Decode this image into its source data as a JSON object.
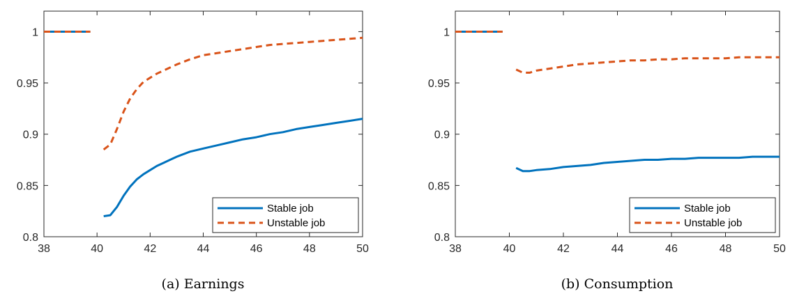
{
  "colors": {
    "stable": "#0072BD",
    "unstable": "#D95319"
  },
  "chart_data": [
    {
      "type": "line",
      "caption": "(a) Earnings",
      "title": "",
      "xlabel": "",
      "ylabel": "",
      "xlim": [
        38,
        50
      ],
      "ylim": [
        0.8,
        1.02
      ],
      "xticks": [
        38,
        40,
        42,
        44,
        46,
        48,
        50
      ],
      "yticks": [
        0.8,
        0.85,
        0.9,
        0.95,
        1
      ],
      "xtick_labels": [
        "38",
        "40",
        "42",
        "44",
        "46",
        "48",
        "50"
      ],
      "ytick_labels": [
        "0.8",
        "0.85",
        "0.9",
        "0.95",
        "1"
      ],
      "legend": {
        "placement": "bottom-right",
        "entries": [
          "Stable job",
          "Unstable job"
        ]
      },
      "series": [
        {
          "name": "Stable job",
          "segments": [
            {
              "x": [
                38,
                39.75
              ],
              "y": [
                1,
                1
              ]
            },
            {
              "x": [
                40.25,
                40.5,
                40.75,
                41,
                41.25,
                41.5,
                41.75,
                42,
                42.25,
                42.5,
                42.75,
                43,
                43.5,
                44,
                44.5,
                45,
                45.5,
                46,
                46.5,
                47,
                47.5,
                48,
                48.5,
                49,
                49.5,
                50
              ],
              "y": [
                0.82,
                0.821,
                0.829,
                0.84,
                0.849,
                0.856,
                0.861,
                0.865,
                0.869,
                0.872,
                0.875,
                0.878,
                0.883,
                0.886,
                0.889,
                0.892,
                0.895,
                0.897,
                0.9,
                0.902,
                0.905,
                0.907,
                0.909,
                0.911,
                0.913,
                0.915
              ]
            }
          ]
        },
        {
          "name": "Unstable job",
          "segments": [
            {
              "x": [
                38,
                39.75
              ],
              "y": [
                1,
                1
              ]
            },
            {
              "x": [
                40.25,
                40.5,
                40.75,
                41,
                41.25,
                41.5,
                41.75,
                42,
                42.25,
                42.5,
                42.75,
                43,
                43.5,
                44,
                44.5,
                45,
                45.5,
                46,
                46.5,
                47,
                47.5,
                48,
                48.5,
                49,
                49.5,
                50
              ],
              "y": [
                0.885,
                0.89,
                0.905,
                0.922,
                0.935,
                0.944,
                0.951,
                0.955,
                0.959,
                0.962,
                0.965,
                0.968,
                0.973,
                0.977,
                0.979,
                0.981,
                0.983,
                0.985,
                0.987,
                0.988,
                0.989,
                0.99,
                0.991,
                0.992,
                0.993,
                0.994
              ]
            }
          ]
        }
      ]
    },
    {
      "type": "line",
      "caption": "(b) Consumption",
      "title": "",
      "xlabel": "",
      "ylabel": "",
      "xlim": [
        38,
        50
      ],
      "ylim": [
        0.8,
        1.02
      ],
      "xticks": [
        38,
        40,
        42,
        44,
        46,
        48,
        50
      ],
      "yticks": [
        0.8,
        0.85,
        0.9,
        0.95,
        1
      ],
      "xtick_labels": [
        "38",
        "40",
        "42",
        "44",
        "46",
        "48",
        "50"
      ],
      "ytick_labels": [
        "0.8",
        "0.85",
        "0.9",
        "0.95",
        "1"
      ],
      "legend": {
        "placement": "bottom-right",
        "entries": [
          "Stable job",
          "Unstable job"
        ]
      },
      "series": [
        {
          "name": "Stable job",
          "segments": [
            {
              "x": [
                38,
                39.75
              ],
              "y": [
                1,
                1
              ]
            },
            {
              "x": [
                40.25,
                40.5,
                40.75,
                41,
                41.5,
                42,
                42.5,
                43,
                43.5,
                44,
                44.5,
                45,
                45.5,
                46,
                46.5,
                47,
                47.5,
                48,
                48.5,
                49,
                49.5,
                50
              ],
              "y": [
                0.867,
                0.864,
                0.864,
                0.865,
                0.866,
                0.868,
                0.869,
                0.87,
                0.872,
                0.873,
                0.874,
                0.875,
                0.875,
                0.876,
                0.876,
                0.877,
                0.877,
                0.877,
                0.877,
                0.878,
                0.878,
                0.878
              ]
            }
          ]
        },
        {
          "name": "Unstable job",
          "segments": [
            {
              "x": [
                38,
                39.75
              ],
              "y": [
                1,
                1
              ]
            },
            {
              "x": [
                40.25,
                40.5,
                40.75,
                41,
                41.5,
                42,
                42.5,
                43,
                43.5,
                44,
                44.5,
                45,
                45.5,
                46,
                46.5,
                47,
                47.5,
                48,
                48.5,
                49,
                49.5,
                50
              ],
              "y": [
                0.963,
                0.96,
                0.96,
                0.962,
                0.964,
                0.966,
                0.968,
                0.969,
                0.97,
                0.971,
                0.972,
                0.972,
                0.973,
                0.973,
                0.974,
                0.974,
                0.974,
                0.974,
                0.975,
                0.975,
                0.975,
                0.975
              ]
            }
          ]
        }
      ]
    }
  ]
}
